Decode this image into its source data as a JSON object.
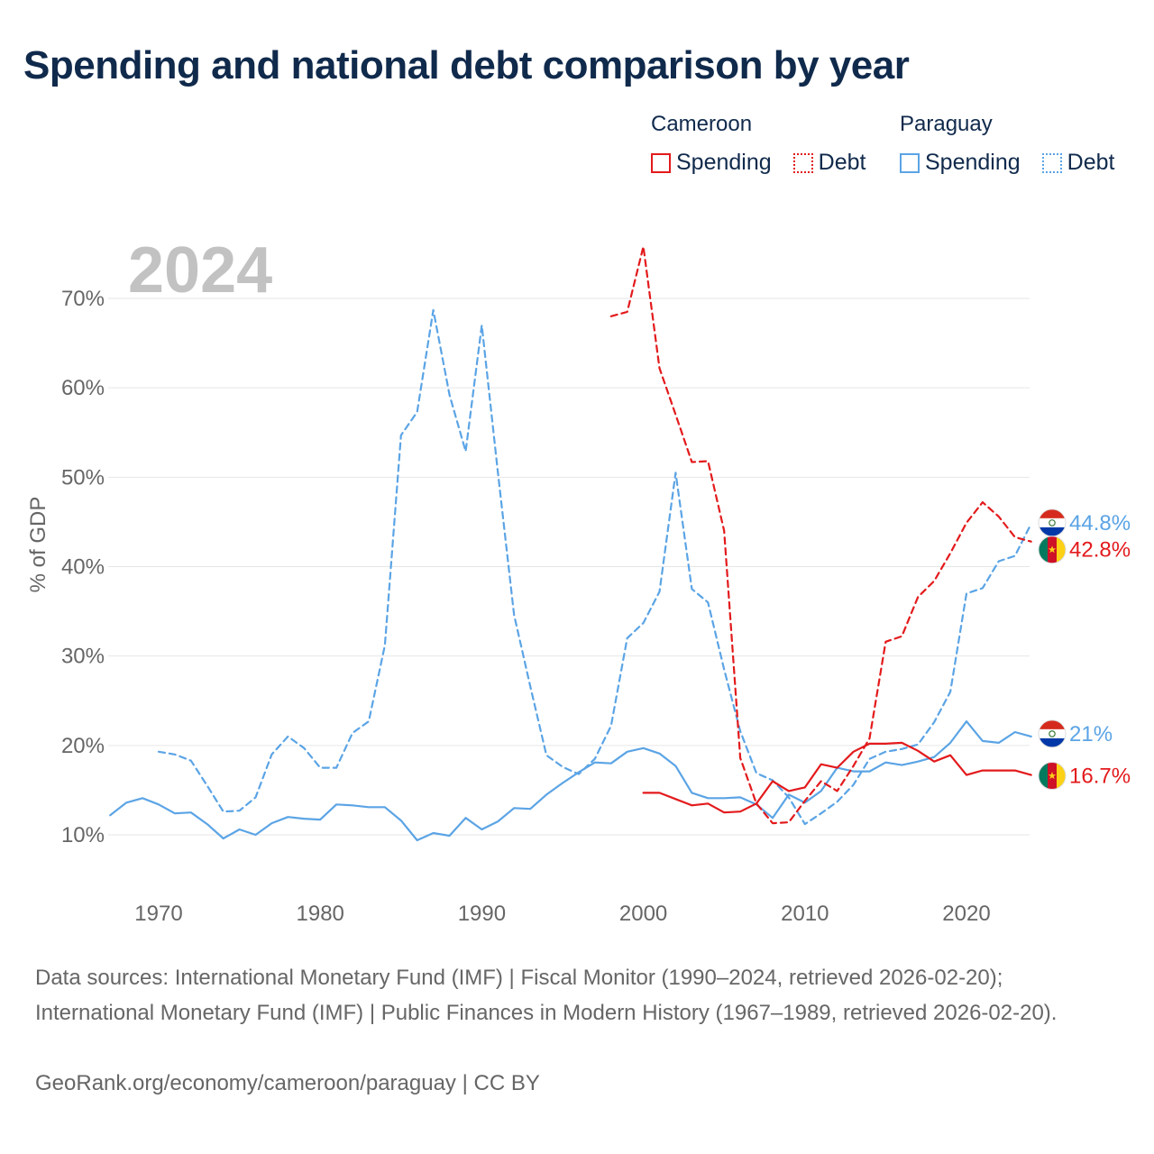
{
  "title": "Spending and national debt comparison by year",
  "legend": {
    "cameroon": {
      "country": "Cameroon",
      "spending": "Spending",
      "debt": "Debt",
      "color": "#e31a1c"
    },
    "paraguay": {
      "country": "Paraguay",
      "spending": "Spending",
      "debt": "Debt",
      "color": "#5ba4e5"
    }
  },
  "chart_data": {
    "type": "line",
    "year_label": "2024",
    "ylabel": "% of GDP",
    "xlim": [
      1967,
      2024
    ],
    "ylim": [
      4.5,
      76
    ],
    "x_ticks": [
      1970,
      1980,
      1990,
      2000,
      2010,
      2020
    ],
    "x_tick_labels": [
      "1970",
      "1980",
      "1990",
      "2000",
      "2010",
      "2020"
    ],
    "y_ticks": [
      10,
      20,
      30,
      40,
      50,
      60,
      70
    ],
    "y_tick_labels": [
      "10%",
      "20%",
      "30%",
      "40%",
      "50%",
      "60%",
      "70%"
    ],
    "grid": true,
    "series": [
      {
        "name": "Paraguay Debt",
        "country": "Paraguay",
        "measure": "Debt",
        "color": "#5ba4e5",
        "dash": "dashed",
        "x": [
          1970,
          1971,
          1972,
          1973,
          1974,
          1975,
          1976,
          1977,
          1978,
          1979,
          1980,
          1981,
          1982,
          1983,
          1984,
          1985,
          1986,
          1987,
          1988,
          1989,
          1990,
          1991,
          1992,
          1993,
          1994,
          1995,
          1996,
          1997,
          1998,
          1999,
          2000,
          2001,
          2002,
          2003,
          2004,
          2005,
          2006,
          2007,
          2008,
          2009,
          2010,
          2011,
          2012,
          2013,
          2014,
          2015,
          2016,
          2017,
          2018,
          2019,
          2020,
          2021,
          2022,
          2023,
          2024
        ],
        "values": [
          19.3,
          19.0,
          18.3,
          15.5,
          12.6,
          12.7,
          14.2,
          19.0,
          21.0,
          19.7,
          17.5,
          17.5,
          21.4,
          22.7,
          31.2,
          54.7,
          57.3,
          68.7,
          59.2,
          52.9,
          67.0,
          50.5,
          34.6,
          26.6,
          18.9,
          17.6,
          16.8,
          18.5,
          22.2,
          32.0,
          33.7,
          37.2,
          50.5,
          37.5,
          36.0,
          28.5,
          21.6,
          16.9,
          16.1,
          14.2,
          11.2,
          12.4,
          13.7,
          15.6,
          18.5,
          19.3,
          19.6,
          20.1,
          22.6,
          26.0,
          37.0,
          37.6,
          40.6,
          41.2,
          44.8
        ],
        "end_label": "44.8%"
      },
      {
        "name": "Paraguay Spending",
        "country": "Paraguay",
        "measure": "Spending",
        "color": "#5ba4e5",
        "dash": "solid",
        "x": [
          1967,
          1968,
          1969,
          1970,
          1971,
          1972,
          1973,
          1974,
          1975,
          1976,
          1977,
          1978,
          1979,
          1980,
          1981,
          1982,
          1983,
          1984,
          1985,
          1986,
          1987,
          1988,
          1989,
          1990,
          1991,
          1992,
          1993,
          1994,
          1995,
          1996,
          1997,
          1998,
          1999,
          2000,
          2001,
          2002,
          2003,
          2004,
          2005,
          2006,
          2007,
          2008,
          2009,
          2010,
          2011,
          2012,
          2013,
          2014,
          2015,
          2016,
          2017,
          2018,
          2019,
          2020,
          2021,
          2022,
          2023,
          2024
        ],
        "values": [
          12.2,
          13.6,
          14.1,
          13.4,
          12.4,
          12.5,
          11.2,
          9.6,
          10.6,
          10.0,
          11.3,
          12.0,
          11.8,
          11.7,
          13.4,
          13.3,
          13.1,
          13.1,
          11.6,
          9.4,
          10.2,
          9.9,
          11.9,
          10.6,
          11.5,
          13.0,
          12.9,
          14.5,
          15.8,
          17.0,
          18.1,
          18.0,
          19.3,
          19.7,
          19.1,
          17.7,
          14.7,
          14.1,
          14.1,
          14.2,
          13.4,
          11.9,
          14.5,
          13.6,
          14.9,
          17.5,
          17.1,
          17.1,
          18.1,
          17.8,
          18.2,
          18.7,
          20.3,
          22.7,
          20.5,
          20.3,
          21.5,
          21.0
        ],
        "end_label": "21%"
      },
      {
        "name": "Cameroon Debt",
        "country": "Cameroon",
        "measure": "Debt",
        "color": "#e31a1c",
        "dash": "dashed",
        "x": [
          1998,
          1999,
          2000,
          2001,
          2002,
          2003,
          2004,
          2005,
          2006,
          2007,
          2008,
          2009,
          2010,
          2011,
          2012,
          2013,
          2014,
          2015,
          2016,
          2017,
          2018,
          2019,
          2020,
          2021,
          2022,
          2023,
          2024
        ],
        "values": [
          68.0,
          68.5,
          75.8,
          62.2,
          57.0,
          51.7,
          51.8,
          44.0,
          18.6,
          13.5,
          11.3,
          11.4,
          13.8,
          16.0,
          14.9,
          17.7,
          20.8,
          31.6,
          32.2,
          36.6,
          38.4,
          41.5,
          44.9,
          47.2,
          45.6,
          43.3,
          42.8
        ],
        "end_label": "42.8%"
      },
      {
        "name": "Cameroon Spending",
        "country": "Cameroon",
        "measure": "Spending",
        "color": "#e31a1c",
        "dash": "solid",
        "x": [
          2000,
          2001,
          2002,
          2003,
          2004,
          2005,
          2006,
          2007,
          2008,
          2009,
          2010,
          2011,
          2012,
          2013,
          2014,
          2015,
          2016,
          2017,
          2018,
          2019,
          2020,
          2021,
          2022,
          2023,
          2024
        ],
        "values": [
          14.7,
          14.7,
          14.0,
          13.3,
          13.5,
          12.5,
          12.6,
          13.5,
          16.0,
          14.9,
          15.3,
          17.9,
          17.5,
          19.3,
          20.2,
          20.2,
          20.3,
          19.4,
          18.2,
          18.9,
          16.7,
          17.2,
          17.2,
          17.2,
          16.7
        ],
        "end_label": "16.7%"
      }
    ]
  },
  "footer": {
    "sources": "Data sources: International Monetary Fund (IMF) | Fiscal Monitor (1990–2024, retrieved 2026-02-20); International Monetary Fund (IMF) | Public Finances in Modern History (1967–1989, retrieved 2026-02-20).",
    "credit": "GeoRank.org/economy/cameroon/paraguay | CC BY"
  }
}
